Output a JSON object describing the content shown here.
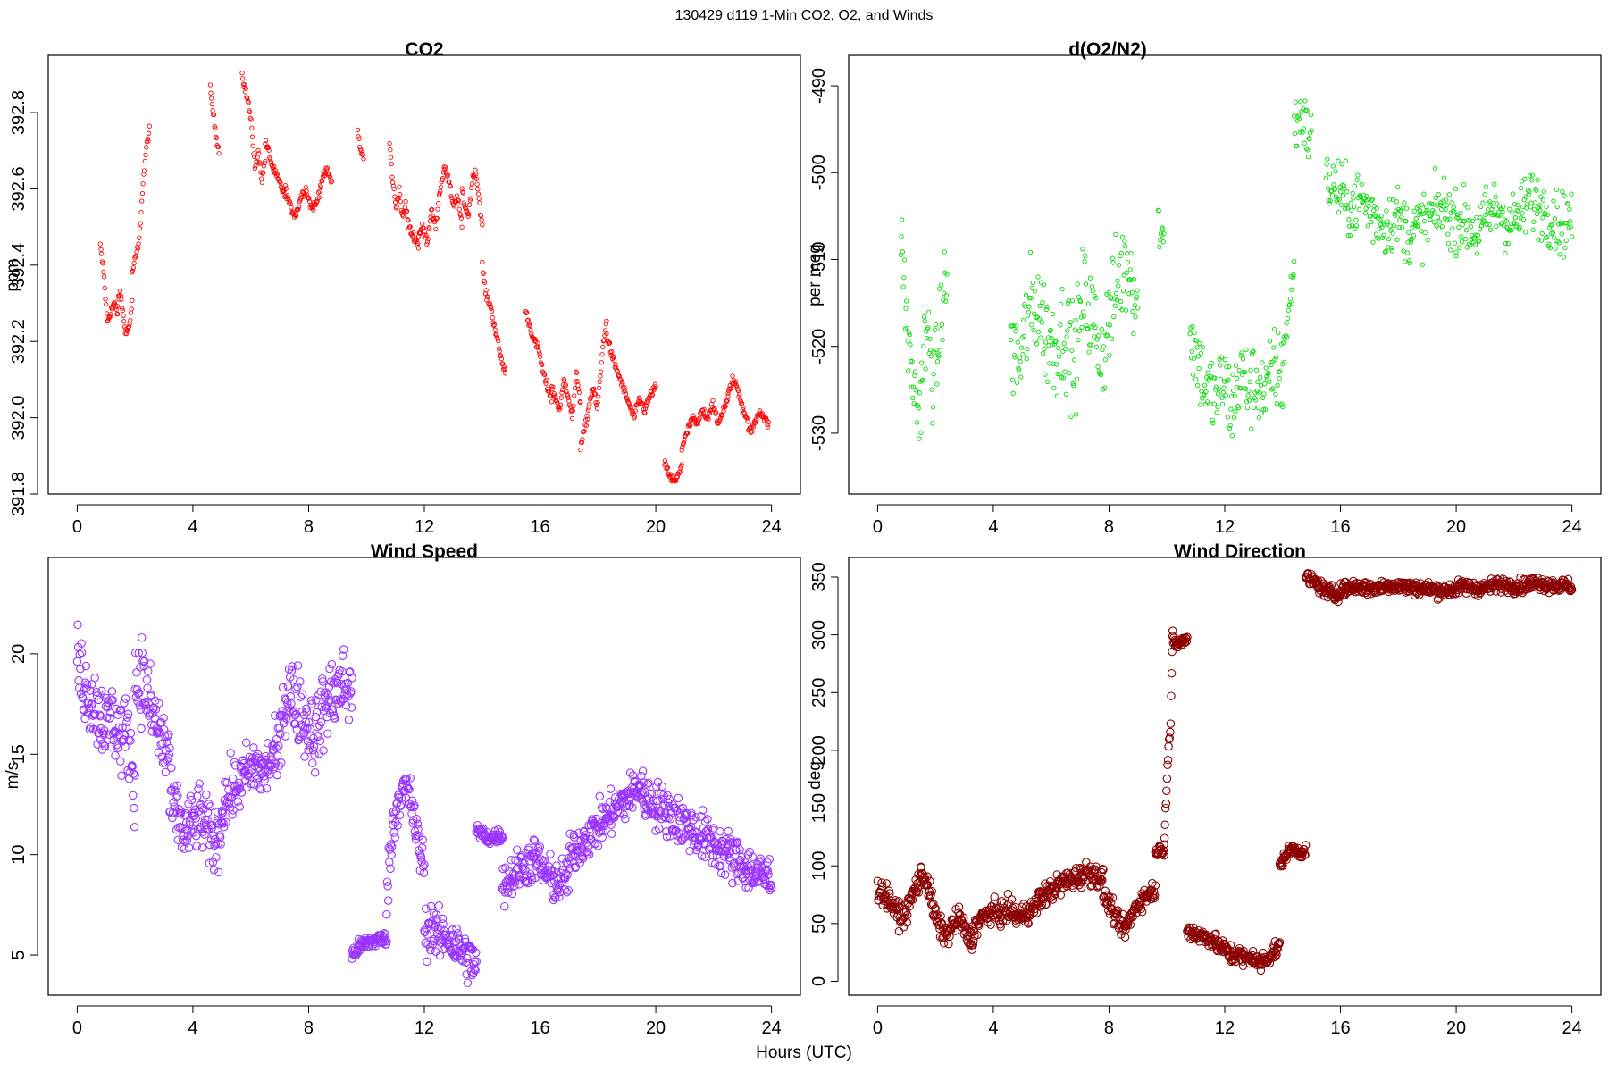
{
  "figure": {
    "title": "130429   d119   1-Min CO2, O2, and Winds",
    "xlabel": "Hours (UTC)"
  },
  "chart_data": [
    {
      "type": "scatter",
      "title": "CO2",
      "ylabel": "ppm",
      "color": "#ff0000",
      "xlim": [
        -1,
        25
      ],
      "ylim": [
        391.8,
        392.95
      ],
      "xticks": [
        0,
        4,
        8,
        12,
        16,
        20,
        24
      ],
      "yticks": [
        391.8,
        392.0,
        392.2,
        392.4,
        392.6,
        392.8
      ],
      "ytick_labels": [
        "391.8",
        "392.0",
        "392.2",
        "392.4",
        "392.6",
        "392.8"
      ],
      "segments": [
        {
          "x0": 0.8,
          "x1": 1.4,
          "y": [
            392.45,
            392.38,
            392.25,
            392.28,
            392.3,
            392.27
          ]
        },
        {
          "x0": 1.4,
          "x1": 1.9,
          "y": [
            392.3,
            392.33,
            392.26,
            392.22,
            392.24,
            392.3
          ]
        },
        {
          "x0": 1.9,
          "x1": 2.5,
          "y": [
            392.38,
            392.42,
            392.46,
            392.6,
            392.7,
            392.76
          ]
        },
        {
          "x0": 4.6,
          "x1": 4.9,
          "y": [
            392.86,
            392.8,
            392.74,
            392.7
          ]
        },
        {
          "x0": 5.7,
          "x1": 6.5,
          "y": [
            392.9,
            392.86,
            392.82,
            392.75,
            392.65,
            392.7,
            392.62,
            392.68
          ]
        },
        {
          "x0": 6.5,
          "x1": 7.2,
          "y": [
            392.72,
            392.7,
            392.66,
            392.64,
            392.62,
            392.6,
            392.58
          ]
        },
        {
          "x0": 7.2,
          "x1": 8.8,
          "y": [
            392.6,
            392.55,
            392.53,
            392.58,
            392.6,
            392.55,
            392.56,
            392.62,
            392.65,
            392.62
          ]
        },
        {
          "x0": 9.7,
          "x1": 9.9,
          "y": [
            392.75,
            392.7,
            392.68
          ]
        },
        {
          "x0": 10.8,
          "x1": 11.8,
          "y": [
            392.72,
            392.62,
            392.55,
            392.6,
            392.52,
            392.56,
            392.5,
            392.48,
            392.47,
            392.45
          ]
        },
        {
          "x0": 11.8,
          "x1": 13.3,
          "y": [
            392.48,
            392.5,
            392.46,
            392.55,
            392.5,
            392.6,
            392.66,
            392.62,
            392.55,
            392.58,
            392.5
          ]
        },
        {
          "x0": 13.3,
          "x1": 14.0,
          "y": [
            392.6,
            392.55,
            392.53,
            392.62,
            392.65,
            392.58,
            392.5
          ]
        },
        {
          "x0": 14.0,
          "x1": 14.8,
          "y": [
            392.4,
            392.32,
            392.3,
            392.25,
            392.2,
            392.15,
            392.12
          ]
        },
        {
          "x0": 15.5,
          "x1": 16.4,
          "y": [
            392.28,
            392.24,
            392.2,
            392.18,
            392.12,
            392.08,
            392.05
          ]
        },
        {
          "x0": 16.4,
          "x1": 17.4,
          "y": [
            392.08,
            392.05,
            392.02,
            392.1,
            392.06,
            392.0,
            392.12,
            392.04
          ]
        },
        {
          "x0": 17.4,
          "x1": 18.3,
          "y": [
            391.92,
            391.96,
            392.0,
            392.05,
            392.08,
            392.02,
            392.1,
            392.2,
            392.25
          ]
        },
        {
          "x0": 18.3,
          "x1": 20.0,
          "y": [
            392.22,
            392.16,
            392.12,
            392.08,
            392.04,
            392.0,
            392.05,
            392.02,
            392.06,
            392.08
          ]
        },
        {
          "x0": 20.3,
          "x1": 20.9,
          "y": [
            391.88,
            391.86,
            391.84,
            391.83,
            391.85,
            391.88
          ]
        },
        {
          "x0": 20.9,
          "x1": 22.5,
          "y": [
            391.92,
            391.96,
            392.0,
            391.98,
            392.02,
            392.0,
            392.04,
            391.98,
            392.02,
            392.05
          ]
        },
        {
          "x0": 22.5,
          "x1": 23.9,
          "y": [
            392.06,
            392.1,
            392.08,
            392.04,
            392.0,
            391.96,
            391.99,
            392.02,
            392.0,
            391.98
          ]
        }
      ]
    },
    {
      "type": "scatter",
      "title": "d(O2/N2)",
      "ylabel": "per meg",
      "color": "#00dd00",
      "xlim": [
        -1,
        25
      ],
      "ylim": [
        -537,
        -486.5
      ],
      "xticks": [
        0,
        4,
        8,
        12,
        16,
        20,
        24
      ],
      "yticks": [
        -530,
        -520,
        -510,
        -500,
        -490
      ],
      "ytick_labels": [
        "-530",
        "-520",
        "-510",
        "-500",
        "-490"
      ],
      "segments": [
        {
          "x0": 0.8,
          "x1": 2.4,
          "y": [
            -506,
            -515,
            -522,
            -525,
            -528,
            -520,
            -519,
            -524,
            -521,
            -515,
            -512
          ],
          "jitter": 4
        },
        {
          "x0": 4.6,
          "x1": 9.0,
          "y": [
            -520,
            -522,
            -516,
            -515,
            -519,
            -520,
            -518,
            -522,
            -514,
            -517,
            -521,
            -516,
            -512,
            -510,
            -515
          ],
          "jitter": 5
        },
        {
          "x0": 9.7,
          "x1": 9.9,
          "y": [
            -505,
            -508,
            -506
          ],
          "jitter": 2
        },
        {
          "x0": 10.8,
          "x1": 14.0,
          "y": [
            -518,
            -522,
            -525,
            -526,
            -524,
            -527,
            -523,
            -525,
            -524,
            -526,
            -522,
            -524
          ],
          "jitter": 4
        },
        {
          "x0": 14.0,
          "x1": 14.4,
          "y": [
            -521,
            -518,
            -515,
            -510
          ],
          "jitter": 3
        },
        {
          "x0": 14.4,
          "x1": 15.0,
          "y": [
            -495,
            -494,
            -493,
            -496,
            -495
          ],
          "jitter": 3
        },
        {
          "x0": 15.5,
          "x1": 20.0,
          "y": [
            -501,
            -502,
            -504,
            -503,
            -505,
            -506,
            -505,
            -507,
            -506,
            -505,
            -504,
            -506
          ],
          "jitter": 3
        },
        {
          "x0": 20.0,
          "x1": 24.0,
          "y": [
            -505,
            -506,
            -507,
            -505,
            -504,
            -506,
            -505,
            -503,
            -504,
            -505,
            -506,
            -505
          ],
          "jitter": 3
        }
      ]
    },
    {
      "type": "scatter",
      "title": "Wind Speed",
      "ylabel": "m/s",
      "color": "#9933ff",
      "xlim": [
        -1,
        25
      ],
      "ylim": [
        3,
        24.8
      ],
      "xticks": [
        0,
        4,
        8,
        12,
        16,
        20,
        24
      ],
      "yticks": [
        5,
        10,
        15,
        20
      ],
      "ytick_labels": [
        "5",
        "10",
        "15",
        "20"
      ],
      "segments": [
        {
          "x0": 0.0,
          "x1": 2.0,
          "y": [
            19.5,
            18.5,
            17.8,
            17.0,
            16.5,
            16.8,
            15.8,
            16.0,
            13.5
          ],
          "jitter": 1.6
        },
        {
          "x0": 2.0,
          "x1": 3.2,
          "y": [
            18.5,
            19.0,
            17.5,
            16.5,
            15.5,
            15.0
          ],
          "jitter": 1.8
        },
        {
          "x0": 3.2,
          "x1": 5.0,
          "y": [
            12.5,
            12.0,
            11.0,
            11.5,
            12.0,
            11.2,
            10.5,
            11.5
          ],
          "jitter": 1.3
        },
        {
          "x0": 5.0,
          "x1": 7.0,
          "y": [
            12.5,
            13.0,
            13.5,
            14.0,
            14.5,
            14.0,
            14.8,
            15.0
          ],
          "jitter": 1.2
        },
        {
          "x0": 7.0,
          "x1": 9.5,
          "y": [
            17.0,
            18.0,
            17.5,
            16.5,
            16.0,
            17.5,
            18.0,
            18.5,
            18.0
          ],
          "jitter": 1.6
        },
        {
          "x0": 9.5,
          "x1": 10.7,
          "y": [
            5.0,
            5.4,
            5.6,
            5.7,
            5.8,
            5.8
          ],
          "jitter": 0.3
        },
        {
          "x0": 10.7,
          "x1": 12.0,
          "y": [
            8.0,
            11.5,
            13.0,
            13.2,
            12.5,
            10.5,
            9.5
          ],
          "jitter": 1.0
        },
        {
          "x0": 12.0,
          "x1": 13.8,
          "y": [
            6.0,
            6.5,
            5.8,
            6.0,
            5.5,
            5.2,
            4.8,
            4.5
          ],
          "jitter": 1.0
        },
        {
          "x0": 13.8,
          "x1": 14.7,
          "y": [
            11.2,
            11.0,
            10.8,
            10.9,
            11.0
          ],
          "jitter": 0.3
        },
        {
          "x0": 14.7,
          "x1": 17.0,
          "y": [
            8.5,
            9.0,
            9.5,
            9.8,
            9.0,
            8.5,
            9.0
          ],
          "jitter": 0.9
        },
        {
          "x0": 17.0,
          "x1": 19.5,
          "y": [
            9.8,
            10.5,
            11.0,
            11.5,
            12.0,
            12.5,
            13.0,
            13.5
          ],
          "jitter": 0.9
        },
        {
          "x0": 19.5,
          "x1": 24.0,
          "y": [
            13.0,
            12.5,
            12.0,
            11.5,
            11.0,
            10.5,
            10.0,
            9.5,
            9.0,
            8.8
          ],
          "jitter": 1.0
        }
      ]
    },
    {
      "type": "scatter",
      "title": "Wind Direction",
      "ylabel": "deg",
      "color": "#8b0000",
      "xlim": [
        -1,
        25
      ],
      "ylim": [
        -12,
        367
      ],
      "xticks": [
        0,
        4,
        8,
        12,
        16,
        20,
        24
      ],
      "yticks": [
        0,
        50,
        100,
        150,
        200,
        250,
        300,
        350
      ],
      "ytick_labels": [
        "0",
        "50",
        "100",
        "150",
        "200",
        "250",
        "300",
        "350"
      ],
      "segments": [
        {
          "x0": 0.0,
          "x1": 1.5,
          "y": [
            80,
            75,
            70,
            60,
            55,
            65,
            80,
            90
          ],
          "jitter": 8
        },
        {
          "x0": 1.5,
          "x1": 3.3,
          "y": [
            95,
            85,
            60,
            45,
            40,
            50,
            55,
            40,
            35
          ],
          "jitter": 8
        },
        {
          "x0": 3.3,
          "x1": 5.5,
          "y": [
            45,
            55,
            60,
            58,
            62,
            55,
            60,
            65
          ],
          "jitter": 8
        },
        {
          "x0": 5.5,
          "x1": 7.8,
          "y": [
            70,
            75,
            80,
            85,
            88,
            90,
            95,
            92,
            88
          ],
          "jitter": 8
        },
        {
          "x0": 7.8,
          "x1": 9.6,
          "y": [
            75,
            65,
            50,
            45,
            60,
            70,
            75,
            80
          ],
          "jitter": 7
        },
        {
          "x0": 9.6,
          "x1": 9.9,
          "y": [
            110,
            115,
            112
          ],
          "jitter": 3
        },
        {
          "x0": 9.9,
          "x1": 10.2,
          "y": [
            120,
            160,
            200,
            220,
            300
          ],
          "jitter": 5
        },
        {
          "x0": 10.2,
          "x1": 10.7,
          "y": [
            295,
            292,
            294,
            296
          ],
          "jitter": 4
        },
        {
          "x0": 10.7,
          "x1": 12.2,
          "y": [
            45,
            40,
            38,
            30,
            25
          ],
          "jitter": 6
        },
        {
          "x0": 12.2,
          "x1": 13.9,
          "y": [
            20,
            25,
            18,
            22,
            15,
            20,
            25,
            30
          ],
          "jitter": 7
        },
        {
          "x0": 13.9,
          "x1": 14.8,
          "y": [
            100,
            110,
            115,
            112,
            112
          ],
          "jitter": 4
        },
        {
          "x0": 14.8,
          "x1": 16.5,
          "y": [
            350,
            345,
            338,
            335,
            340,
            342
          ],
          "jitter": 5
        },
        {
          "x0": 16.5,
          "x1": 24.0,
          "y": [
            342,
            340,
            343,
            341,
            340,
            338,
            342,
            340,
            344,
            342,
            345,
            343,
            342
          ],
          "jitter": 5
        }
      ]
    }
  ]
}
